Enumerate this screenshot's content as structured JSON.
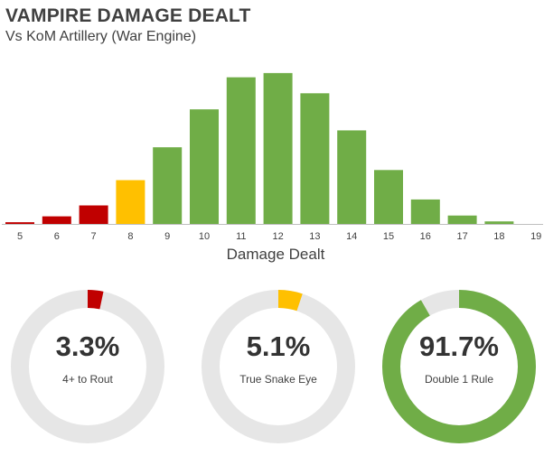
{
  "header": {
    "title": "VAMPIRE DAMAGE DEALT",
    "subtitle": "Vs KoM Artillery (War Engine)"
  },
  "colors": {
    "red": "#c00000",
    "yellow": "#ffc000",
    "green": "#70ad47",
    "track": "#e6e6e6",
    "axis": "#bfbfbf",
    "text": "#404040"
  },
  "chart_data": [
    {
      "type": "bar",
      "xlabel": "Damage Dealt",
      "ylabel": "",
      "categories": [
        "5",
        "6",
        "7",
        "8",
        "9",
        "10",
        "11",
        "12",
        "13",
        "14",
        "15",
        "16",
        "17",
        "18",
        "19"
      ],
      "values": [
        0.2,
        0.9,
        2.2,
        5.2,
        9.1,
        13.6,
        17.4,
        17.9,
        15.5,
        11.1,
        6.4,
        2.9,
        1.0,
        0.3,
        0.0
      ],
      "bar_colors": [
        "red",
        "red",
        "red",
        "yellow",
        "green",
        "green",
        "green",
        "green",
        "green",
        "green",
        "green",
        "green",
        "green",
        "green",
        "green"
      ],
      "ylim": [
        0,
        19.5
      ],
      "grid": false
    },
    {
      "type": "pie",
      "variant": "donut",
      "value_text": "3.3%",
      "label": "4+ to Rout",
      "percent": 3.3,
      "color": "red"
    },
    {
      "type": "pie",
      "variant": "donut",
      "value_text": "5.1%",
      "label": "True Snake Eye",
      "percent": 5.1,
      "color": "yellow"
    },
    {
      "type": "pie",
      "variant": "donut",
      "value_text": "91.7%",
      "label": "Double 1 Rule",
      "percent": 91.7,
      "color": "green"
    }
  ]
}
